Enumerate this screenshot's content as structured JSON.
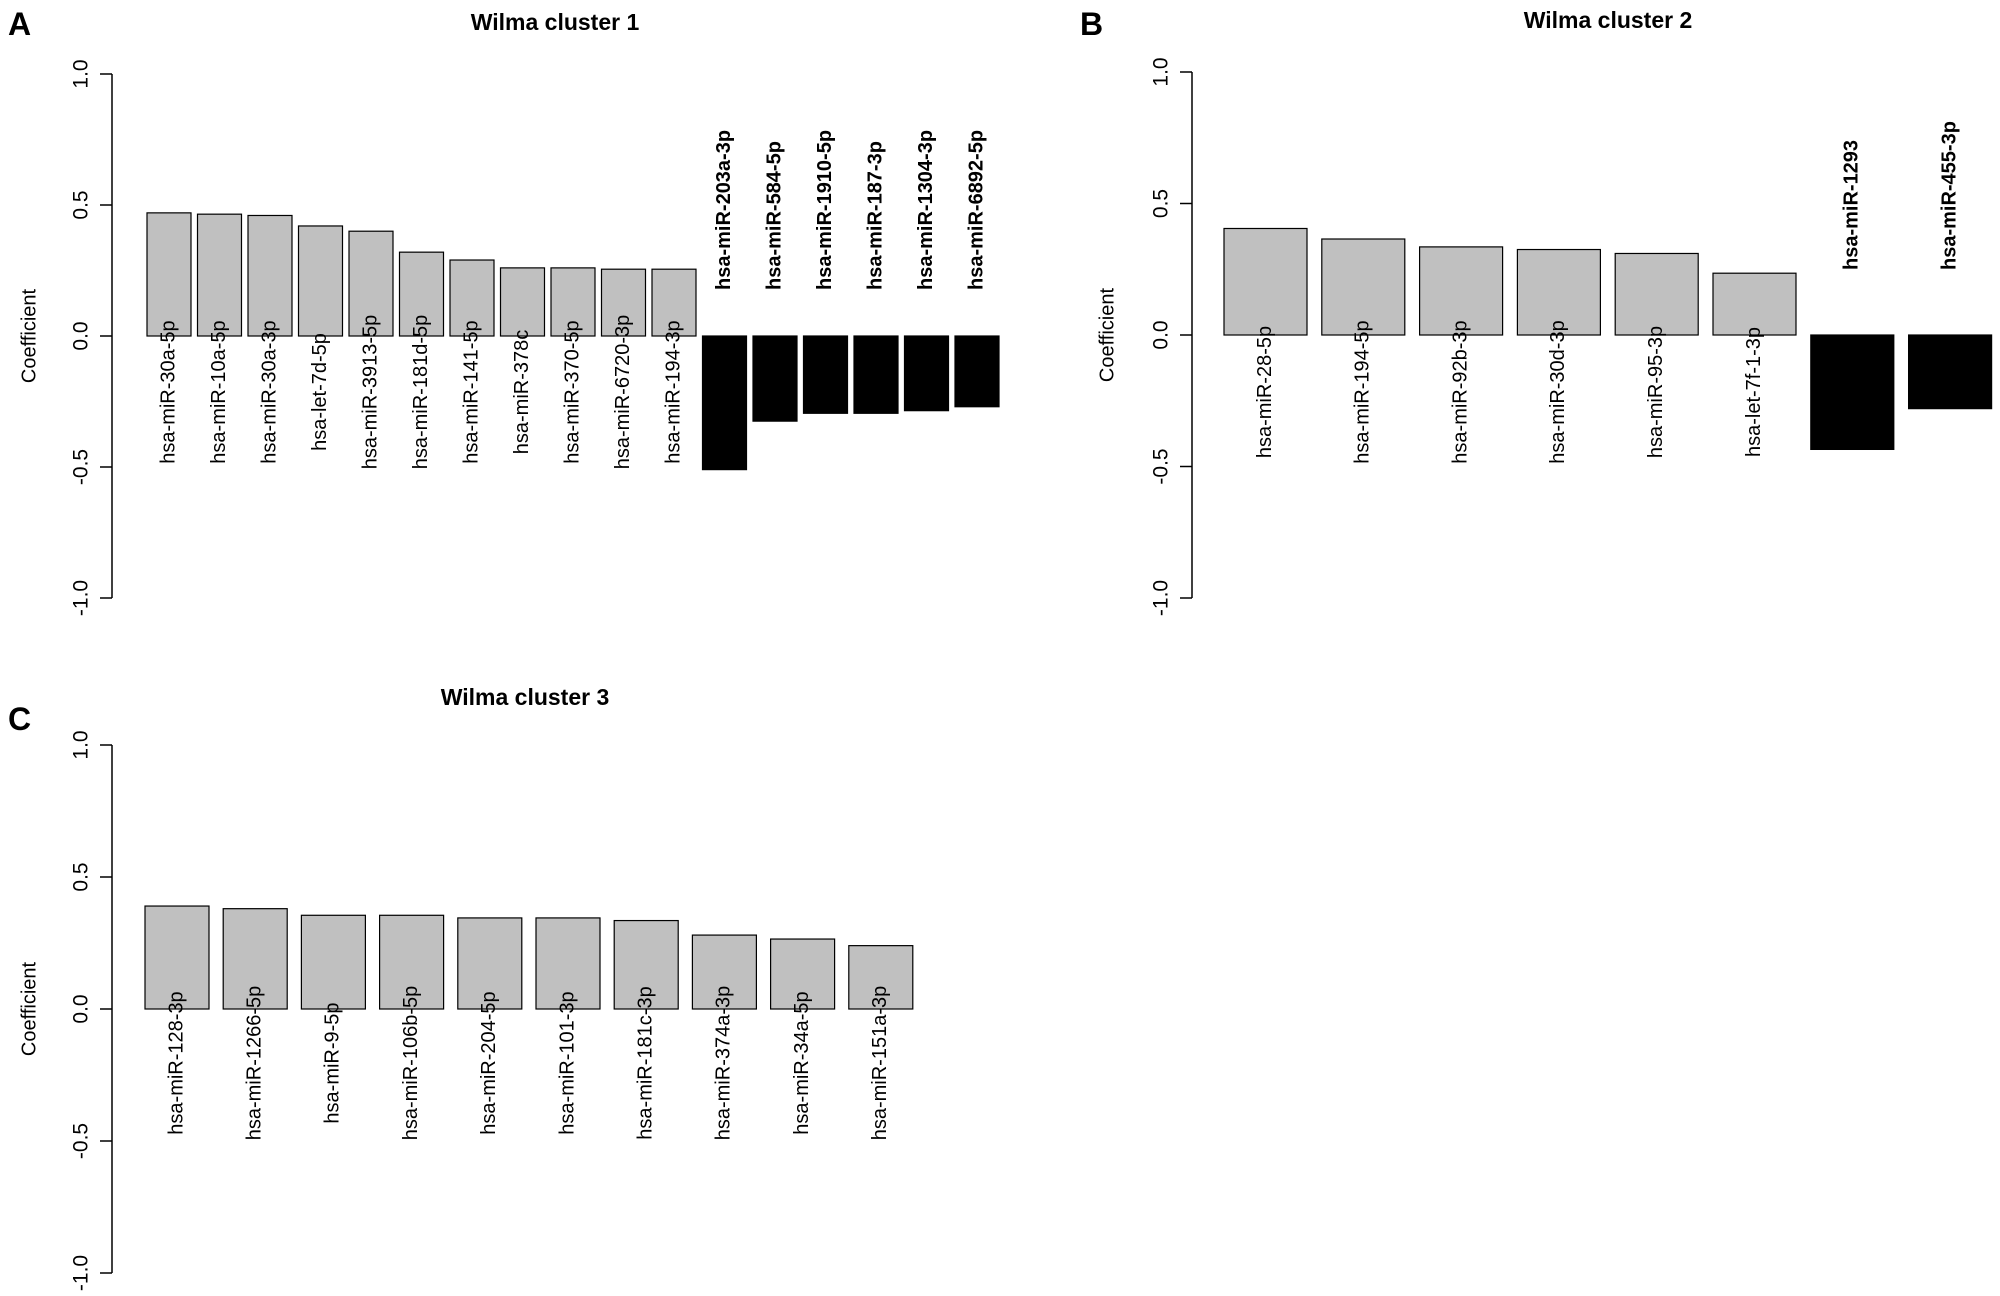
{
  "chart_data": [
    {
      "panel": "A",
      "type": "bar",
      "title": "Wilma cluster 1",
      "ylabel": "Coefficient",
      "ylim": [
        -1.0,
        1.0
      ],
      "yticks": [
        "-1.0",
        "-0.5",
        "0.0",
        "0.5",
        "1.0"
      ],
      "grid": false,
      "colors": {
        "positive": "#c0c0c0",
        "negative": "#000000"
      },
      "categories": [
        "hsa-miR-30a-5p",
        "hsa-miR-10a-5p",
        "hsa-miR-30a-3p",
        "hsa-let-7d-5p",
        "hsa-miR-3913-5p",
        "hsa-miR-181d-5p",
        "hsa-miR-141-5p",
        "hsa-miR-378c",
        "hsa-miR-370-5p",
        "hsa-miR-6720-3p",
        "hsa-miR-194-3p",
        "hsa-miR-203a-3p",
        "hsa-miR-584-5p",
        "hsa-miR-1910-5p",
        "hsa-miR-187-3p",
        "hsa-miR-1304-3p",
        "hsa-miR-6892-5p"
      ],
      "values": [
        0.47,
        0.465,
        0.46,
        0.42,
        0.4,
        0.32,
        0.29,
        0.26,
        0.26,
        0.255,
        0.255,
        -0.51,
        -0.325,
        -0.295,
        -0.295,
        -0.285,
        -0.27
      ]
    },
    {
      "panel": "B",
      "type": "bar",
      "title": "Wilma cluster 2",
      "ylabel": "Coefficient",
      "ylim": [
        -1.0,
        1.0
      ],
      "yticks": [
        "-1.0",
        "-0.5",
        "0.0",
        "0.5",
        "1.0"
      ],
      "grid": false,
      "colors": {
        "positive": "#c0c0c0",
        "negative": "#000000"
      },
      "categories": [
        "hsa-miR-28-5p",
        "hsa-miR-194-5p",
        "hsa-miR-92b-3p",
        "hsa-miR-30d-3p",
        "hsa-miR-95-3p",
        "hsa-let-7f-1-3p",
        "hsa-miR-1293",
        "hsa-miR-455-3p"
      ],
      "values": [
        0.405,
        0.365,
        0.335,
        0.325,
        0.31,
        0.235,
        -0.435,
        -0.28
      ]
    },
    {
      "panel": "C",
      "type": "bar",
      "title": "Wilma cluster 3",
      "ylabel": "Coefficient",
      "ylim": [
        -1.0,
        1.0
      ],
      "yticks": [
        "-1.0",
        "-0.5",
        "0.0",
        "0.5",
        "1.0"
      ],
      "grid": false,
      "colors": {
        "positive": "#c0c0c0",
        "negative": "#000000"
      },
      "categories": [
        "hsa-miR-128-3p",
        "hsa-miR-1266-5p",
        "hsa-miR-9-5p",
        "hsa-miR-106b-5p",
        "hsa-miR-204-5p",
        "hsa-miR-101-3p",
        "hsa-miR-181c-3p",
        "hsa-miR-374a-3p",
        "hsa-miR-34a-5p",
        "hsa-miR-151a-3p"
      ],
      "values": [
        0.39,
        0.38,
        0.355,
        0.355,
        0.345,
        0.345,
        0.335,
        0.28,
        0.265,
        0.24
      ]
    }
  ]
}
